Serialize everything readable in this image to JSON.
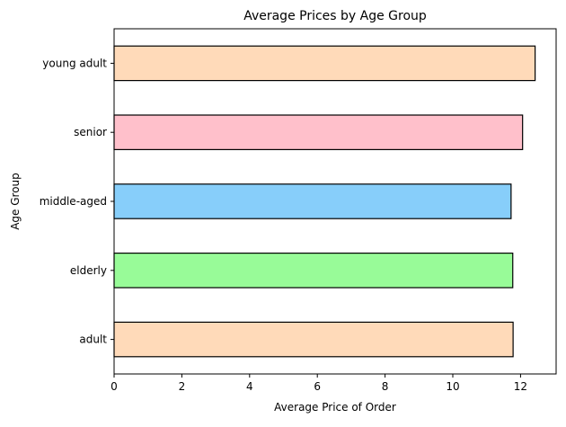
{
  "chart_data": {
    "type": "bar",
    "orientation": "horizontal",
    "title": "Average Prices by Age Group",
    "xlabel": "Average Price of Order",
    "ylabel": "Age Group",
    "categories": [
      "adult",
      "elderly",
      "middle-aged",
      "senior",
      "young adult"
    ],
    "values": [
      11.78,
      11.77,
      11.72,
      12.06,
      12.43
    ],
    "bar_colors": [
      "#ffdab9",
      "#98fb98",
      "#87cefa",
      "#ffc0cb",
      "#ffdab9"
    ],
    "edge_color": "#000000",
    "xlim": [
      0,
      13.05
    ],
    "xticks": [
      0,
      2,
      4,
      6,
      8,
      10,
      12
    ],
    "grid": false,
    "legend": "none"
  }
}
